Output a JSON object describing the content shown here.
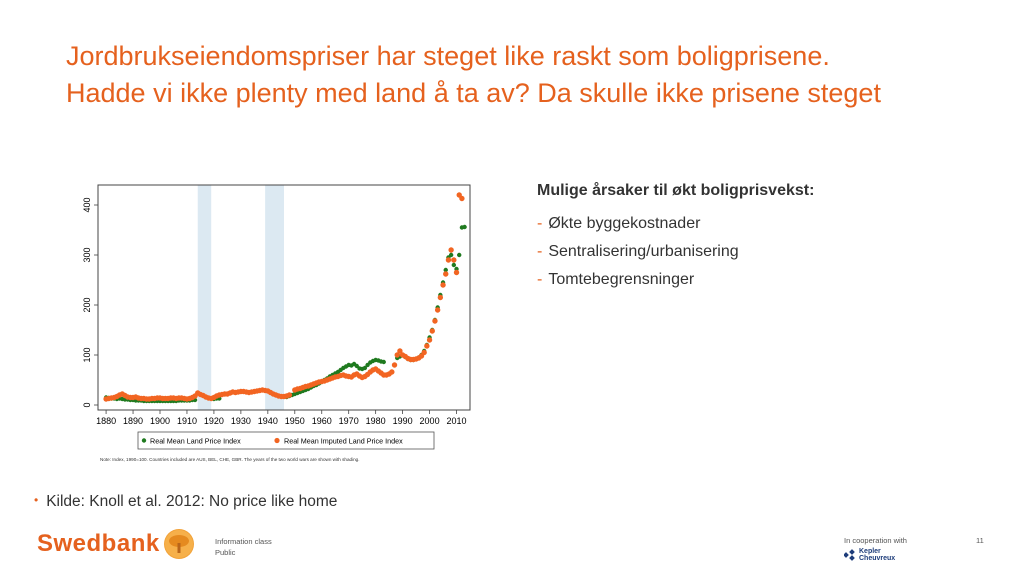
{
  "slide": {
    "title_line1": "Jordbrukseiendomspriser har steget like raskt som boligprisene.",
    "title_line2": "Hadde vi ikke plenty med land å ta av? Da skulle ikke prisene steget",
    "causes_heading": "Mulige årsaker til økt boligprisvekst:",
    "causes": [
      {
        "dash": "-",
        "text": "Økte byggekostnader"
      },
      {
        "dash": "-",
        "text": "Sentralisering/urbanisering"
      },
      {
        "dash": "-",
        "text": "Tomtebegrensninger"
      }
    ],
    "source_bullet": "•",
    "source": "Kilde: Knoll et al. 2012: No price like home"
  },
  "footer": {
    "brand": "Swedbank",
    "info_line1": "Information class",
    "info_line2": "Public",
    "coop": "In cooperation with",
    "partner_line1": "Kepler",
    "partner_line2": "Cheuvreux",
    "page_number": "11"
  },
  "chart_data": {
    "type": "scatter",
    "x_ticks": [
      "1880",
      "1890",
      "1900",
      "1910",
      "1920",
      "1930",
      "1940",
      "1950",
      "1960",
      "1970",
      "1980",
      "1990",
      "2000",
      "2010"
    ],
    "y_ticks": [
      "0",
      "100",
      "200",
      "300",
      "400"
    ],
    "xlim": [
      1877,
      2015
    ],
    "ylim": [
      -10,
      440
    ],
    "shaded_periods": [
      [
        1914,
        1919
      ],
      [
        1939,
        1946
      ]
    ],
    "shade_color": "#dce9f2",
    "legend_land": "Real Mean Land Price Index",
    "legend_imputed": "Real Mean Imputed Land Price Index",
    "note": "Note: Index, 1990=100. Countries included are AUS, BEL, CHE, GBR. The years of the two world wars are shown with shading.",
    "series": [
      {
        "name": "Real Mean Land Price Index",
        "color": "#1f7a1f",
        "points": [
          [
            1880,
            15
          ],
          [
            1881,
            14
          ],
          [
            1882,
            13
          ],
          [
            1883,
            13
          ],
          [
            1884,
            12
          ],
          [
            1885,
            13
          ],
          [
            1886,
            12
          ],
          [
            1887,
            11
          ],
          [
            1888,
            11
          ],
          [
            1889,
            10
          ],
          [
            1890,
            10
          ],
          [
            1891,
            9
          ],
          [
            1892,
            9
          ],
          [
            1893,
            9
          ],
          [
            1894,
            8
          ],
          [
            1895,
            8
          ],
          [
            1896,
            8
          ],
          [
            1897,
            8
          ],
          [
            1898,
            8
          ],
          [
            1899,
            8
          ],
          [
            1900,
            8
          ],
          [
            1901,
            8
          ],
          [
            1902,
            8
          ],
          [
            1903,
            8
          ],
          [
            1904,
            8
          ],
          [
            1905,
            8
          ],
          [
            1906,
            8
          ],
          [
            1907,
            9
          ],
          [
            1908,
            9
          ],
          [
            1909,
            9
          ],
          [
            1910,
            9
          ],
          [
            1911,
            9
          ],
          [
            1912,
            10
          ],
          [
            1913,
            10
          ],
          [
            1920,
            12
          ],
          [
            1921,
            13
          ],
          [
            1922,
            13
          ],
          [
            1947,
            16
          ],
          [
            1948,
            18
          ],
          [
            1949,
            20
          ],
          [
            1950,
            22
          ],
          [
            1951,
            24
          ],
          [
            1952,
            26
          ],
          [
            1953,
            28
          ],
          [
            1954,
            30
          ],
          [
            1955,
            32
          ],
          [
            1956,
            35
          ],
          [
            1957,
            38
          ],
          [
            1958,
            40
          ],
          [
            1959,
            43
          ],
          [
            1960,
            46
          ],
          [
            1961,
            50
          ],
          [
            1962,
            53
          ],
          [
            1963,
            57
          ],
          [
            1964,
            60
          ],
          [
            1965,
            63
          ],
          [
            1966,
            66
          ],
          [
            1967,
            70
          ],
          [
            1968,
            74
          ],
          [
            1969,
            77
          ],
          [
            1970,
            80
          ],
          [
            1971,
            79
          ],
          [
            1972,
            82
          ],
          [
            1973,
            78
          ],
          [
            1974,
            73
          ],
          [
            1975,
            72
          ],
          [
            1976,
            74
          ],
          [
            1977,
            80
          ],
          [
            1978,
            85
          ],
          [
            1979,
            88
          ],
          [
            1980,
            90
          ],
          [
            1981,
            89
          ],
          [
            1982,
            87
          ],
          [
            1983,
            86
          ],
          [
            1988,
            94
          ],
          [
            1989,
            97
          ],
          [
            1990,
            100
          ],
          [
            1991,
            96
          ],
          [
            1992,
            92
          ],
          [
            1993,
            90
          ],
          [
            1994,
            90
          ],
          [
            1995,
            92
          ],
          [
            1996,
            95
          ],
          [
            1997,
            100
          ],
          [
            1998,
            108
          ],
          [
            1999,
            120
          ],
          [
            2000,
            135
          ],
          [
            2001,
            150
          ],
          [
            2002,
            170
          ],
          [
            2003,
            195
          ],
          [
            2004,
            220
          ],
          [
            2005,
            245
          ],
          [
            2006,
            270
          ],
          [
            2007,
            295
          ],
          [
            2008,
            300
          ],
          [
            2009,
            280
          ],
          [
            2010,
            272
          ],
          [
            2011,
            300
          ],
          [
            2012,
            355
          ],
          [
            2013,
            356
          ]
        ]
      },
      {
        "name": "Real Mean Imputed Land Price Index",
        "color": "#f26522",
        "points": [
          [
            1880,
            12
          ],
          [
            1881,
            13
          ],
          [
            1882,
            14
          ],
          [
            1883,
            15
          ],
          [
            1884,
            17
          ],
          [
            1885,
            20
          ],
          [
            1886,
            22
          ],
          [
            1887,
            19
          ],
          [
            1888,
            16
          ],
          [
            1889,
            15
          ],
          [
            1890,
            15
          ],
          [
            1891,
            16
          ],
          [
            1892,
            14
          ],
          [
            1893,
            13
          ],
          [
            1894,
            13
          ],
          [
            1895,
            12
          ],
          [
            1896,
            12
          ],
          [
            1897,
            13
          ],
          [
            1898,
            13
          ],
          [
            1899,
            14
          ],
          [
            1900,
            14
          ],
          [
            1901,
            13
          ],
          [
            1902,
            13
          ],
          [
            1903,
            13
          ],
          [
            1904,
            14
          ],
          [
            1905,
            14
          ],
          [
            1906,
            13
          ],
          [
            1907,
            14
          ],
          [
            1908,
            14
          ],
          [
            1909,
            13
          ],
          [
            1910,
            12
          ],
          [
            1911,
            13
          ],
          [
            1912,
            15
          ],
          [
            1913,
            18
          ],
          [
            1914,
            24
          ],
          [
            1915,
            21
          ],
          [
            1916,
            19
          ],
          [
            1917,
            16
          ],
          [
            1918,
            14
          ],
          [
            1919,
            13
          ],
          [
            1920,
            15
          ],
          [
            1921,
            18
          ],
          [
            1922,
            20
          ],
          [
            1923,
            21
          ],
          [
            1924,
            22
          ],
          [
            1925,
            22
          ],
          [
            1926,
            24
          ],
          [
            1927,
            26
          ],
          [
            1928,
            25
          ],
          [
            1929,
            26
          ],
          [
            1930,
            27
          ],
          [
            1931,
            27
          ],
          [
            1932,
            26
          ],
          [
            1933,
            25
          ],
          [
            1934,
            26
          ],
          [
            1935,
            27
          ],
          [
            1936,
            28
          ],
          [
            1937,
            29
          ],
          [
            1938,
            30
          ],
          [
            1939,
            29
          ],
          [
            1940,
            28
          ],
          [
            1941,
            25
          ],
          [
            1942,
            22
          ],
          [
            1943,
            20
          ],
          [
            1944,
            18
          ],
          [
            1945,
            17
          ],
          [
            1946,
            17
          ],
          [
            1947,
            18
          ],
          [
            1948,
            20
          ],
          [
            1950,
            30
          ],
          [
            1951,
            32
          ],
          [
            1952,
            33
          ],
          [
            1953,
            35
          ],
          [
            1954,
            37
          ],
          [
            1955,
            38
          ],
          [
            1956,
            40
          ],
          [
            1957,
            42
          ],
          [
            1958,
            44
          ],
          [
            1959,
            46
          ],
          [
            1960,
            47
          ],
          [
            1961,
            48
          ],
          [
            1962,
            50
          ],
          [
            1963,
            52
          ],
          [
            1964,
            54
          ],
          [
            1965,
            56
          ],
          [
            1966,
            57
          ],
          [
            1967,
            59
          ],
          [
            1968,
            60
          ],
          [
            1969,
            58
          ],
          [
            1970,
            57
          ],
          [
            1971,
            56
          ],
          [
            1972,
            60
          ],
          [
            1973,
            62
          ],
          [
            1974,
            58
          ],
          [
            1975,
            55
          ],
          [
            1976,
            57
          ],
          [
            1977,
            61
          ],
          [
            1978,
            66
          ],
          [
            1979,
            70
          ],
          [
            1980,
            72
          ],
          [
            1981,
            68
          ],
          [
            1982,
            64
          ],
          [
            1983,
            60
          ],
          [
            1984,
            60
          ],
          [
            1985,
            62
          ],
          [
            1986,
            66
          ],
          [
            1987,
            80
          ],
          [
            1988,
            100
          ],
          [
            1989,
            108
          ],
          [
            1990,
            100
          ],
          [
            1991,
            97
          ],
          [
            1992,
            93
          ],
          [
            1993,
            91
          ],
          [
            1994,
            91
          ],
          [
            1995,
            92
          ],
          [
            1996,
            94
          ],
          [
            1997,
            98
          ],
          [
            1998,
            105
          ],
          [
            1999,
            118
          ],
          [
            2000,
            130
          ],
          [
            2001,
            148
          ],
          [
            2002,
            168
          ],
          [
            2003,
            190
          ],
          [
            2004,
            215
          ],
          [
            2005,
            240
          ],
          [
            2006,
            262
          ],
          [
            2007,
            290
          ],
          [
            2008,
            310
          ],
          [
            2009,
            290
          ],
          [
            2010,
            265
          ],
          [
            2011,
            420
          ],
          [
            2012,
            413
          ]
        ]
      }
    ]
  }
}
